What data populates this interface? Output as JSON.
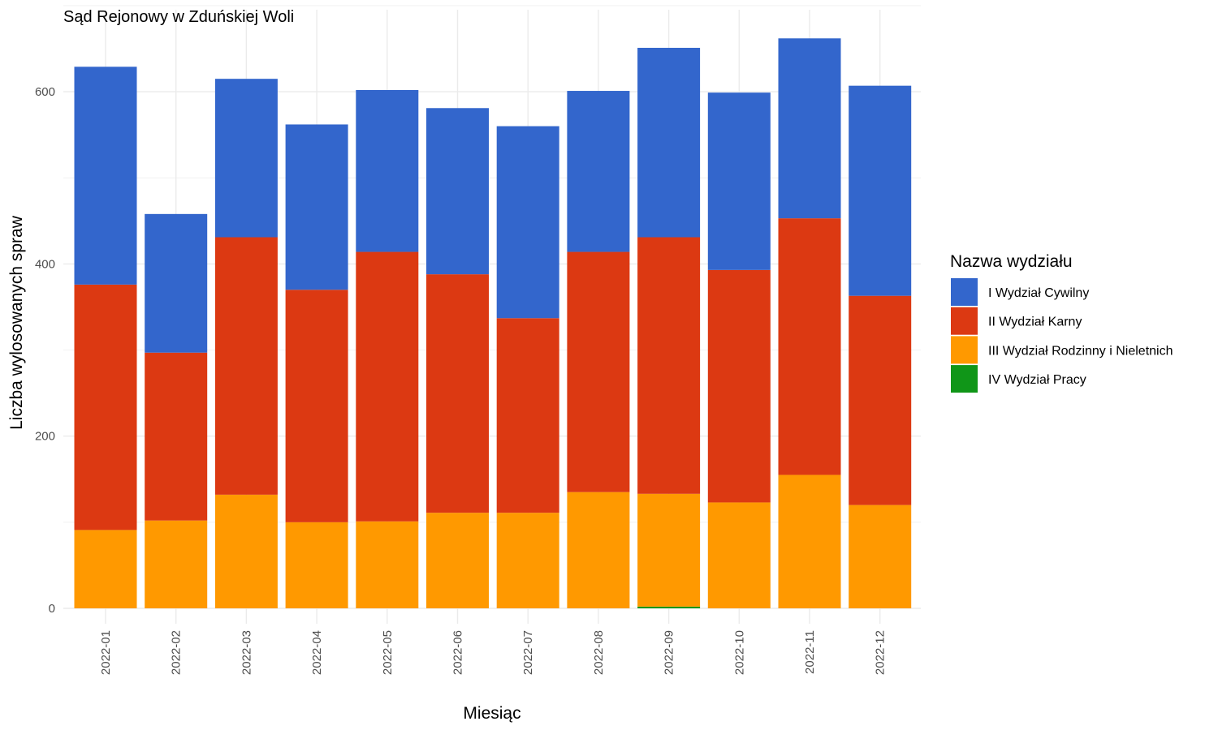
{
  "chart_data": {
    "type": "bar",
    "stacked": true,
    "title": "Sąd Rejonowy w Zduńskiej Woli",
    "xlabel": "Miesiąc",
    "ylabel": "Liczba wylosowanych spraw",
    "ylim": [
      0,
      660
    ],
    "y_ticks": [
      0,
      200,
      400,
      600
    ],
    "grid": true,
    "legend_position": "right",
    "legend_title": "Nazwa wydziału",
    "categories": [
      "2022-01",
      "2022-02",
      "2022-03",
      "2022-04",
      "2022-05",
      "2022-06",
      "2022-07",
      "2022-08",
      "2022-09",
      "2022-10",
      "2022-11",
      "2022-12"
    ],
    "series": [
      {
        "name": "I Wydział Cywilny",
        "color": "#3366cc",
        "values": [
          253,
          161,
          184,
          192,
          188,
          193,
          223,
          187,
          220,
          206,
          209,
          244
        ]
      },
      {
        "name": "II Wydział Karny",
        "color": "#dc3912",
        "values": [
          285,
          195,
          299,
          270,
          313,
          277,
          226,
          279,
          298,
          270,
          298,
          243
        ]
      },
      {
        "name": "III Wydział Rodzinny i Nieletnich",
        "color": "#ff9900",
        "values": [
          91,
          102,
          132,
          100,
          101,
          111,
          111,
          135,
          131,
          123,
          155,
          120
        ]
      },
      {
        "name": "IV Wydział Pracy",
        "color": "#109618",
        "values": [
          0,
          0,
          0,
          0,
          0,
          0,
          0,
          0,
          2,
          0,
          0,
          0
        ]
      }
    ]
  }
}
